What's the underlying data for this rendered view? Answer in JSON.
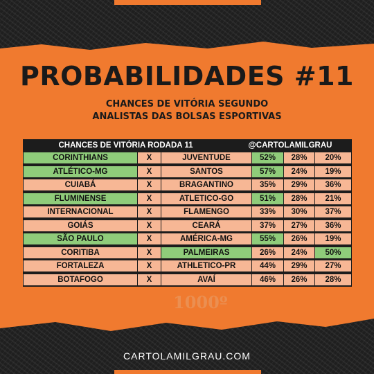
{
  "title": "PROBABILIDADES #11",
  "subtitle_line1": "CHANCES DE VITÓRIA SEGUNDO",
  "subtitle_line2": "ANALISTAS DAS BOLSAS ESPORTIVAS",
  "table": {
    "header_left": "CHANCES DE VITÓRIA RODADA 11",
    "header_right": "@CARTOLAMILGRAU",
    "colors": {
      "green": "#8fcc7a",
      "peach": "#f7b795",
      "dark": "#1c1c1c",
      "accent": "#f07a2f"
    },
    "rows": [
      {
        "home": "CORINTHIANS",
        "vs": "X",
        "away": "JUVENTUDE",
        "home_pct": "52%",
        "draw_pct": "28%",
        "away_pct": "20%",
        "highlight": "home"
      },
      {
        "home": "ATLÉTICO-MG",
        "vs": "X",
        "away": "SANTOS",
        "home_pct": "57%",
        "draw_pct": "24%",
        "away_pct": "19%",
        "highlight": "home"
      },
      {
        "home": "CUIABÁ",
        "vs": "X",
        "away": "BRAGANTINO",
        "home_pct": "35%",
        "draw_pct": "29%",
        "away_pct": "36%",
        "highlight": "none"
      },
      {
        "home": "FLUMINENSE",
        "vs": "X",
        "away": "ATLETICO-GO",
        "home_pct": "51%",
        "draw_pct": "28%",
        "away_pct": "21%",
        "highlight": "home"
      },
      {
        "home": "INTERNACIONAL",
        "vs": "X",
        "away": "FLAMENGO",
        "home_pct": "33%",
        "draw_pct": "30%",
        "away_pct": "37%",
        "highlight": "none"
      },
      {
        "home": "GOIÁS",
        "vs": "X",
        "away": "CEARÁ",
        "home_pct": "37%",
        "draw_pct": "27%",
        "away_pct": "36%",
        "highlight": "none"
      },
      {
        "home": "SÃO PAULO",
        "vs": "X",
        "away": "AMÉRICA-MG",
        "home_pct": "55%",
        "draw_pct": "26%",
        "away_pct": "19%",
        "highlight": "home"
      },
      {
        "home": "CORITIBA",
        "vs": "X",
        "away": "PALMEIRAS",
        "home_pct": "26%",
        "draw_pct": "24%",
        "away_pct": "50%",
        "highlight": "away"
      },
      {
        "home": "FORTALEZA",
        "vs": "X",
        "away": "ATHLETICO-PR",
        "home_pct": "44%",
        "draw_pct": "29%",
        "away_pct": "27%",
        "highlight": "none"
      },
      {
        "home": "BOTAFOGO",
        "vs": "X",
        "away": "AVAÍ",
        "home_pct": "46%",
        "draw_pct": "26%",
        "away_pct": "28%",
        "highlight": "none"
      }
    ]
  },
  "watermark_text": "1000º",
  "footer": "CARTOLAMILGRAU.COM"
}
